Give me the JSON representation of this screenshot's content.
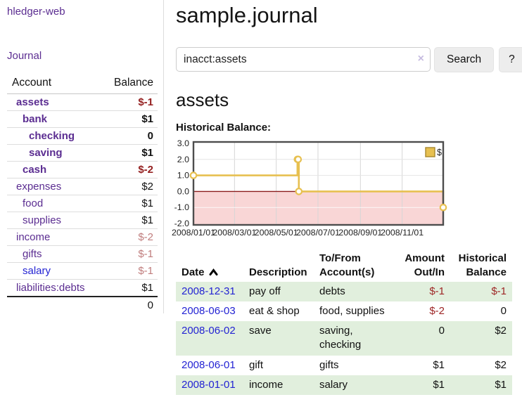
{
  "app": {
    "brand": "hledger-web"
  },
  "sidebar": {
    "journal_link": "Journal",
    "accounts": {
      "col_account": "Account",
      "col_balance": "Balance",
      "rows": [
        {
          "account": "assets",
          "balance": "$-1"
        },
        {
          "account": "bank",
          "balance": "$1"
        },
        {
          "account": "checking",
          "balance": "0"
        },
        {
          "account": "saving",
          "balance": "$1"
        },
        {
          "account": "cash",
          "balance": "$-2"
        },
        {
          "account": "expenses",
          "balance": "$2"
        },
        {
          "account": "food",
          "balance": "$1"
        },
        {
          "account": "supplies",
          "balance": "$1"
        },
        {
          "account": "income",
          "balance": "$-2"
        },
        {
          "account": "gifts",
          "balance": "$-1"
        },
        {
          "account": "salary",
          "balance": "$-1"
        },
        {
          "account": "liabilities:debts",
          "balance": "$1"
        }
      ],
      "total": "0"
    }
  },
  "main": {
    "title": "sample.journal",
    "search": {
      "value": "inacct:assets",
      "clear_icon": "×",
      "search_button": "Search",
      "help_button": "?"
    },
    "account_heading": "assets",
    "chart_label": "Historical Balance:"
  },
  "chart_data": {
    "type": "line",
    "step": true,
    "title": "Historical Balance:",
    "series": [
      {
        "name": "$",
        "color": "#e7c050",
        "points": [
          [
            "2008-01-01",
            1
          ],
          [
            "2008-06-01",
            2
          ],
          [
            "2008-06-02",
            2
          ],
          [
            "2008-06-03",
            0
          ],
          [
            "2008-12-31",
            -1
          ]
        ]
      }
    ],
    "x_range": [
      "2008-01-01",
      "2008-12-31"
    ],
    "x_ticks": [
      "2008/01/01",
      "2008/03/01",
      "2008/05/01",
      "2008/07/01",
      "2008/09/01",
      "2008/11/01"
    ],
    "y_ticks": [
      "3.0",
      "2.0",
      "1.0",
      "0.0",
      "-1.0",
      "-2.0"
    ],
    "ylim": [
      -2.0,
      3.0
    ],
    "grid": true,
    "legend": {
      "label": "$",
      "position": "top-right"
    },
    "negative_region_fill": "#f9d6d6",
    "zero_line_color": "#8b1d1d",
    "border_color": "#4d4d4d"
  },
  "register": {
    "headers": {
      "date": "Date",
      "description": "Description",
      "tofrom": "To/From Account(s)",
      "amount": "Amount Out/In",
      "balance": "Historical Balance"
    },
    "rows": [
      {
        "date": "2008-12-31",
        "description": "pay off",
        "accounts": "debts",
        "amount": "$-1",
        "balance": "$-1"
      },
      {
        "date": "2008-06-03",
        "description": "eat & shop",
        "accounts": "food, supplies",
        "amount": "$-2",
        "balance": "0"
      },
      {
        "date": "2008-06-02",
        "description": "save",
        "accounts": "saving, checking",
        "amount": "0",
        "balance": "$2"
      },
      {
        "date": "2008-06-01",
        "description": "gift",
        "accounts": "gifts",
        "amount": "$1",
        "balance": "$2"
      },
      {
        "date": "2008-01-01",
        "description": "income",
        "accounts": "salary",
        "amount": "$1",
        "balance": "$1"
      }
    ]
  },
  "colors": {
    "link_purple": "#5b2d91",
    "link_blue": "#2323d3",
    "negative_strong": "#941f1f",
    "negative_soft": "#c07d7d",
    "table_negative": "#9e2626",
    "row_green": "#e1efdd",
    "chart_line_gold": "#e7c050"
  }
}
